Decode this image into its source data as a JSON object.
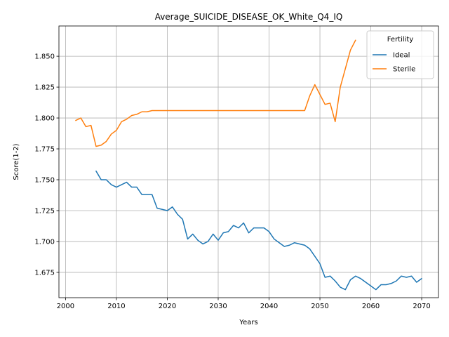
{
  "chart_data": {
    "type": "line",
    "title": "Average_SUICIDE_DISEASE_OK_White_Q4_IQ",
    "xlabel": "Years",
    "ylabel": "Score(1-2)",
    "xlim": [
      1998.7,
      2073.3
    ],
    "ylim": [
      1.6545,
      1.8745
    ],
    "xticks": [
      2000,
      2010,
      2020,
      2030,
      2040,
      2050,
      2060,
      2070
    ],
    "yticks": [
      1.675,
      1.7,
      1.725,
      1.75,
      1.775,
      1.8,
      1.825,
      1.85
    ],
    "ytick_labels": [
      "1.675",
      "1.700",
      "1.725",
      "1.750",
      "1.775",
      "1.800",
      "1.825",
      "1.850"
    ],
    "grid": true,
    "legend": {
      "title": "Fertility",
      "placement": "top-right"
    },
    "series": [
      {
        "name": "Ideal",
        "color": "#1f77b4",
        "x": [
          2006,
          2007,
          2008,
          2009,
          2010,
          2011,
          2012,
          2013,
          2014,
          2015,
          2016,
          2017,
          2018,
          2019,
          2020,
          2021,
          2022,
          2023,
          2024,
          2025,
          2026,
          2027,
          2028,
          2029,
          2030,
          2031,
          2032,
          2033,
          2034,
          2035,
          2036,
          2037,
          2038,
          2039,
          2040,
          2041,
          2042,
          2043,
          2044,
          2045,
          2046,
          2047,
          2048,
          2049,
          2050,
          2051,
          2052,
          2053,
          2054,
          2055,
          2056,
          2057,
          2058,
          2059,
          2060,
          2061,
          2062,
          2063,
          2064,
          2065,
          2066,
          2067,
          2068,
          2069,
          2070
        ],
        "y": [
          1.757,
          1.75,
          1.75,
          1.746,
          1.744,
          1.746,
          1.748,
          1.744,
          1.744,
          1.738,
          1.738,
          1.738,
          1.727,
          1.726,
          1.725,
          1.728,
          1.722,
          1.718,
          1.702,
          1.706,
          1.701,
          1.698,
          1.7,
          1.706,
          1.701,
          1.707,
          1.708,
          1.713,
          1.711,
          1.715,
          1.707,
          1.711,
          1.711,
          1.711,
          1.708,
          1.702,
          1.699,
          1.696,
          1.697,
          1.699,
          1.698,
          1.697,
          1.694,
          1.688,
          1.682,
          1.671,
          1.672,
          1.668,
          1.663,
          1.661,
          1.669,
          1.672,
          1.67,
          1.667,
          1.664,
          1.661,
          1.665,
          1.665,
          1.666,
          1.668,
          1.672,
          1.671,
          1.672,
          1.667,
          1.67
        ]
      },
      {
        "name": "Sterile",
        "color": "#ff7f0e",
        "x": [
          2002,
          2003,
          2004,
          2005,
          2006,
          2007,
          2008,
          2009,
          2010,
          2011,
          2012,
          2013,
          2014,
          2015,
          2016,
          2017,
          2018,
          2019,
          2020,
          2021,
          2022,
          2023,
          2024,
          2025,
          2026,
          2027,
          2028,
          2029,
          2030,
          2031,
          2032,
          2033,
          2034,
          2035,
          2036,
          2037,
          2038,
          2039,
          2040,
          2041,
          2042,
          2043,
          2044,
          2045,
          2046,
          2047,
          2048,
          2049,
          2050,
          2051,
          2052,
          2053,
          2054,
          2055,
          2056,
          2057
        ],
        "y": [
          1.798,
          1.8,
          1.793,
          1.794,
          1.777,
          1.778,
          1.781,
          1.787,
          1.79,
          1.797,
          1.799,
          1.802,
          1.803,
          1.805,
          1.805,
          1.806,
          1.806,
          1.806,
          1.806,
          1.806,
          1.806,
          1.806,
          1.806,
          1.806,
          1.806,
          1.806,
          1.806,
          1.806,
          1.806,
          1.806,
          1.806,
          1.806,
          1.806,
          1.806,
          1.806,
          1.806,
          1.806,
          1.806,
          1.806,
          1.806,
          1.806,
          1.806,
          1.806,
          1.806,
          1.806,
          1.806,
          1.818,
          1.827,
          1.819,
          1.811,
          1.812,
          1.797,
          1.825,
          1.84,
          1.855,
          1.863
        ]
      }
    ]
  }
}
